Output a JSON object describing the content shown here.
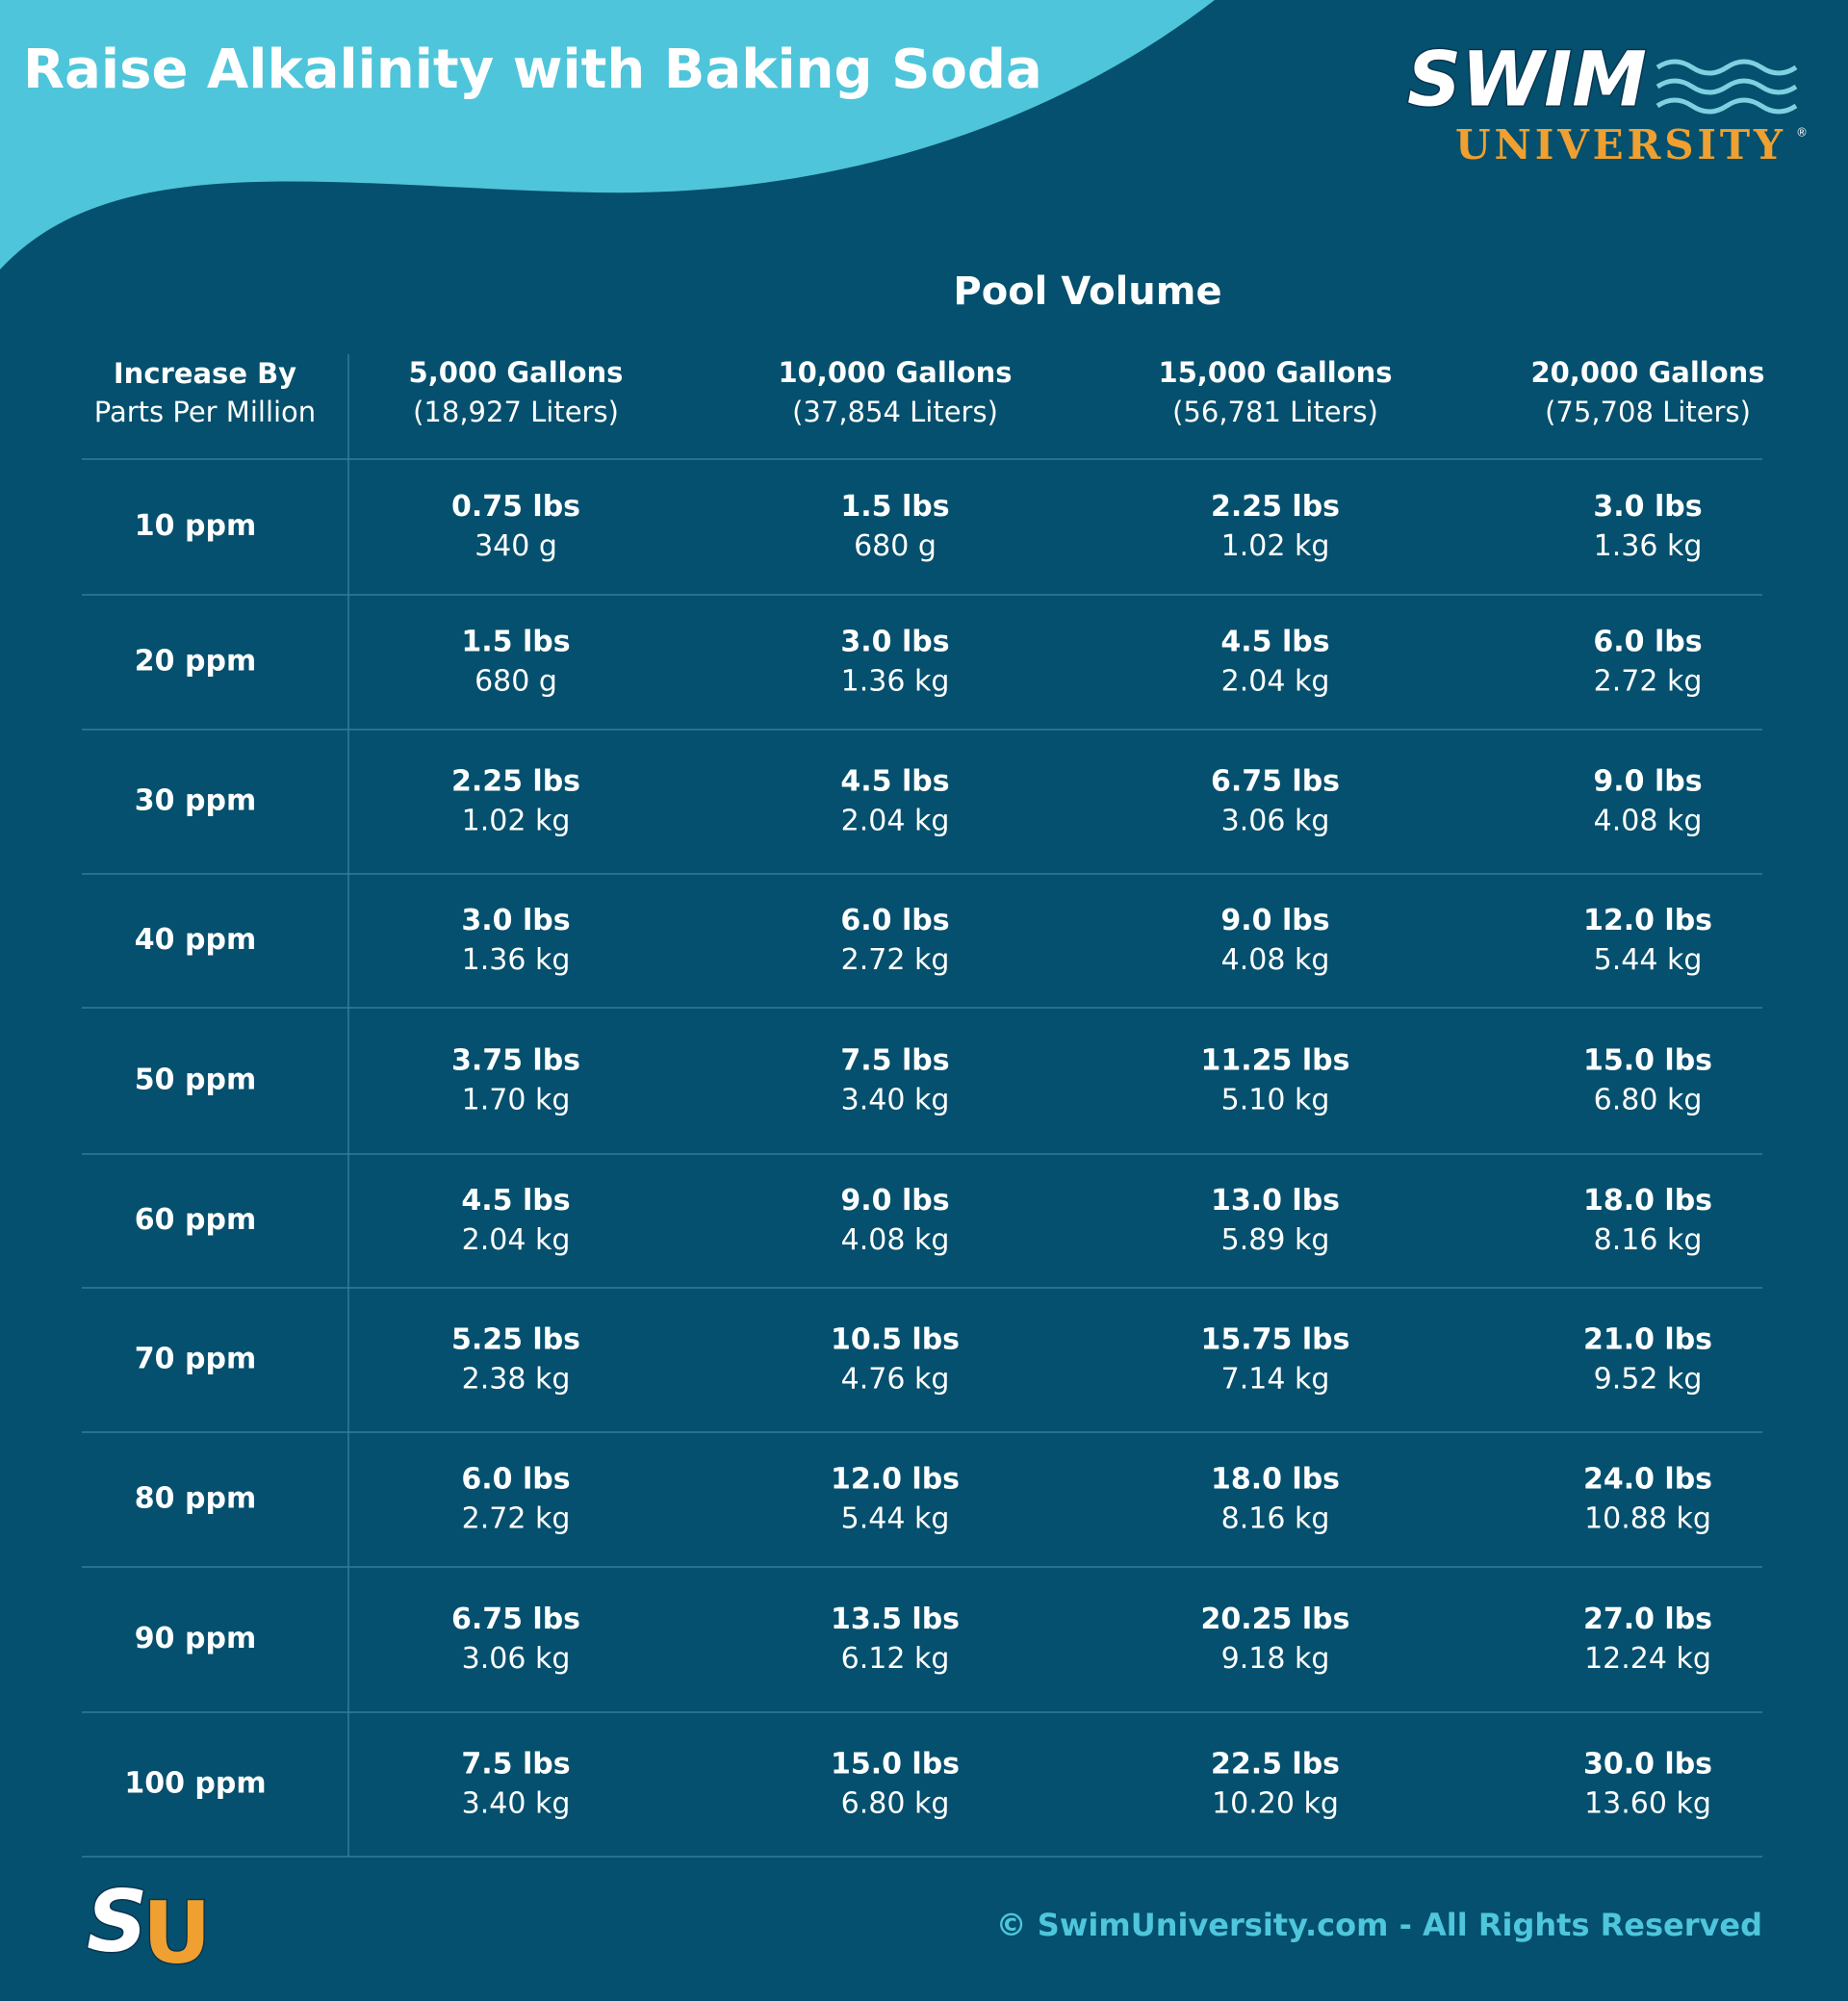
{
  "header": {
    "title": "Raise Alkalinity with Baking Soda",
    "logo": {
      "word": "SWIM",
      "sub": "UNIVERSITY",
      "mark": "®"
    }
  },
  "table": {
    "group_header": "Pool Volume",
    "corner": {
      "line1": "Increase By",
      "line2": "Parts Per Million"
    },
    "columns": [
      {
        "line1": "5,000 Gallons",
        "line2": "(18,927 Liters)"
      },
      {
        "line1": "10,000 Gallons",
        "line2": "(37,854 Liters)"
      },
      {
        "line1": "15,000 Gallons",
        "line2": "(56,781 Liters)"
      },
      {
        "line1": "20,000 Gallons",
        "line2": "(75,708 Liters)"
      }
    ],
    "rows": [
      {
        "label": "10 ppm",
        "cells": [
          {
            "lbs": "0.75 lbs",
            "metric": "340 g"
          },
          {
            "lbs": "1.5 lbs",
            "metric": "680 g"
          },
          {
            "lbs": "2.25 lbs",
            "metric": "1.02 kg"
          },
          {
            "lbs": "3.0 lbs",
            "metric": "1.36 kg"
          }
        ]
      },
      {
        "label": "20 ppm",
        "cells": [
          {
            "lbs": "1.5 lbs",
            "metric": "680 g"
          },
          {
            "lbs": "3.0 lbs",
            "metric": "1.36 kg"
          },
          {
            "lbs": "4.5 lbs",
            "metric": "2.04 kg"
          },
          {
            "lbs": "6.0 lbs",
            "metric": "2.72 kg"
          }
        ]
      },
      {
        "label": "30 ppm",
        "cells": [
          {
            "lbs": "2.25 lbs",
            "metric": "1.02 kg"
          },
          {
            "lbs": "4.5 lbs",
            "metric": "2.04 kg"
          },
          {
            "lbs": "6.75 lbs",
            "metric": "3.06 kg"
          },
          {
            "lbs": "9.0 lbs",
            "metric": "4.08 kg"
          }
        ]
      },
      {
        "label": "40 ppm",
        "cells": [
          {
            "lbs": "3.0 lbs",
            "metric": "1.36 kg"
          },
          {
            "lbs": "6.0 lbs",
            "metric": "2.72 kg"
          },
          {
            "lbs": "9.0 lbs",
            "metric": "4.08 kg"
          },
          {
            "lbs": "12.0 lbs",
            "metric": "5.44 kg"
          }
        ]
      },
      {
        "label": "50 ppm",
        "cells": [
          {
            "lbs": "3.75 lbs",
            "metric": "1.70 kg"
          },
          {
            "lbs": "7.5 lbs",
            "metric": "3.40 kg"
          },
          {
            "lbs": "11.25 lbs",
            "metric": "5.10 kg"
          },
          {
            "lbs": "15.0 lbs",
            "metric": "6.80 kg"
          }
        ]
      },
      {
        "label": "60 ppm",
        "cells": [
          {
            "lbs": "4.5 lbs",
            "metric": "2.04 kg"
          },
          {
            "lbs": "9.0 lbs",
            "metric": "4.08 kg"
          },
          {
            "lbs": "13.0 lbs",
            "metric": "5.89 kg"
          },
          {
            "lbs": "18.0 lbs",
            "metric": "8.16 kg"
          }
        ]
      },
      {
        "label": "70 ppm",
        "cells": [
          {
            "lbs": "5.25 lbs",
            "metric": "2.38 kg"
          },
          {
            "lbs": "10.5 lbs",
            "metric": "4.76 kg"
          },
          {
            "lbs": "15.75 lbs",
            "metric": "7.14 kg"
          },
          {
            "lbs": "21.0 lbs",
            "metric": "9.52 kg"
          }
        ]
      },
      {
        "label": "80 ppm",
        "cells": [
          {
            "lbs": "6.0 lbs",
            "metric": "2.72 kg"
          },
          {
            "lbs": "12.0 lbs",
            "metric": "5.44 kg"
          },
          {
            "lbs": "18.0 lbs",
            "metric": "8.16 kg"
          },
          {
            "lbs": "24.0 lbs",
            "metric": "10.88 kg"
          }
        ]
      },
      {
        "label": "90 ppm",
        "cells": [
          {
            "lbs": "6.75 lbs",
            "metric": "3.06 kg"
          },
          {
            "lbs": "13.5 lbs",
            "metric": "6.12 kg"
          },
          {
            "lbs": "20.25 lbs",
            "metric": "9.18 kg"
          },
          {
            "lbs": "27.0 lbs",
            "metric": "12.24 kg"
          }
        ]
      },
      {
        "label": "100 ppm",
        "cells": [
          {
            "lbs": "7.5 lbs",
            "metric": "3.40 kg"
          },
          {
            "lbs": "15.0 lbs",
            "metric": "6.80 kg"
          },
          {
            "lbs": "22.5 lbs",
            "metric": "10.20 kg"
          },
          {
            "lbs": "30.0 lbs",
            "metric": "13.60 kg"
          }
        ]
      }
    ]
  },
  "footer": {
    "copyright": "© SwimUniversity.com - All Rights Reserved",
    "logo": {
      "s": "S",
      "u": "U"
    }
  }
}
